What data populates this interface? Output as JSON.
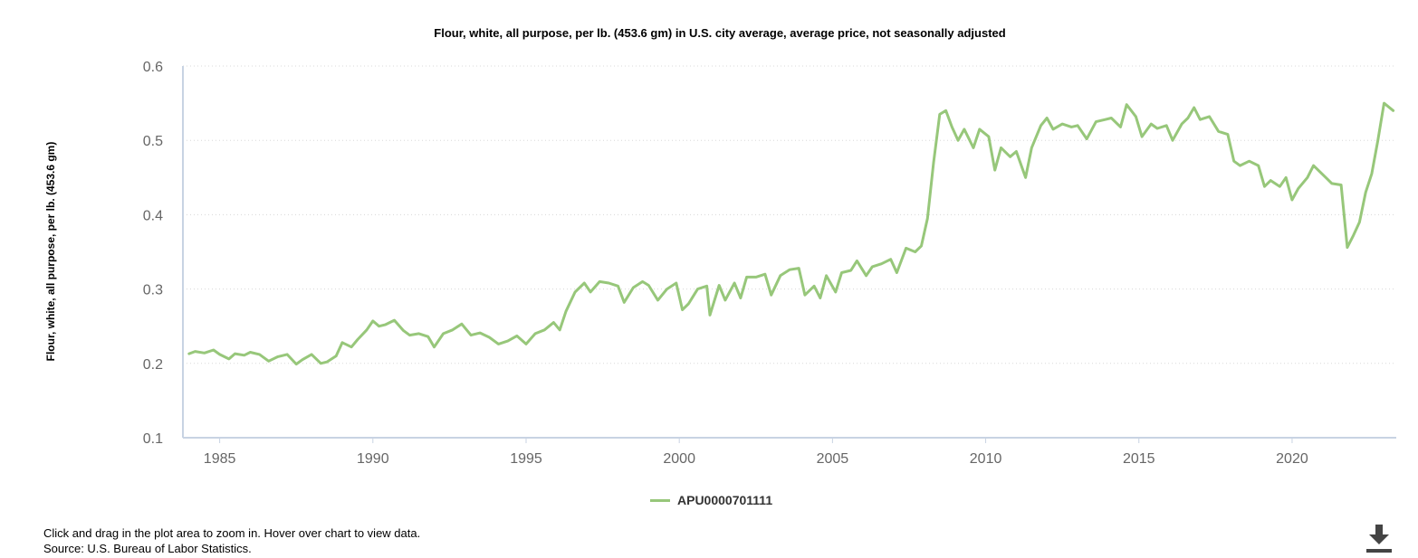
{
  "chart_data": {
    "type": "line",
    "title": "Flour, white, all purpose, per lb. (453.6 gm) in U.S. city average, average price, not seasonally adjusted",
    "xlabel": "",
    "ylabel": "Flour, white, all purpose, per lb. (453.6 gm)",
    "xlim": [
      1983.8,
      2023.4
    ],
    "ylim": [
      0.1,
      0.6
    ],
    "x_ticks": [
      "1985",
      "1990",
      "1995",
      "2000",
      "2005",
      "2010",
      "2015",
      "2020"
    ],
    "y_ticks": [
      "0.1",
      "0.2",
      "0.3",
      "0.4",
      "0.5",
      "0.6"
    ],
    "grid": true,
    "legend_position": "bottom-center",
    "series": [
      {
        "name": "APU0000701111",
        "color": "#97c77a",
        "points": [
          [
            1984.0,
            0.213
          ],
          [
            1984.2,
            0.216
          ],
          [
            1984.5,
            0.214
          ],
          [
            1984.8,
            0.218
          ],
          [
            1985.0,
            0.212
          ],
          [
            1985.3,
            0.206
          ],
          [
            1985.5,
            0.213
          ],
          [
            1985.8,
            0.211
          ],
          [
            1986.0,
            0.215
          ],
          [
            1986.3,
            0.212
          ],
          [
            1986.6,
            0.203
          ],
          [
            1986.9,
            0.209
          ],
          [
            1987.2,
            0.212
          ],
          [
            1987.5,
            0.199
          ],
          [
            1987.7,
            0.205
          ],
          [
            1988.0,
            0.212
          ],
          [
            1988.3,
            0.2
          ],
          [
            1988.5,
            0.202
          ],
          [
            1988.8,
            0.21
          ],
          [
            1989.0,
            0.228
          ],
          [
            1989.3,
            0.222
          ],
          [
            1989.5,
            0.232
          ],
          [
            1989.8,
            0.245
          ],
          [
            1990.0,
            0.257
          ],
          [
            1990.2,
            0.25
          ],
          [
            1990.4,
            0.252
          ],
          [
            1990.7,
            0.258
          ],
          [
            1991.0,
            0.244
          ],
          [
            1991.2,
            0.238
          ],
          [
            1991.5,
            0.24
          ],
          [
            1991.8,
            0.236
          ],
          [
            1992.0,
            0.222
          ],
          [
            1992.3,
            0.24
          ],
          [
            1992.6,
            0.245
          ],
          [
            1992.9,
            0.253
          ],
          [
            1993.2,
            0.238
          ],
          [
            1993.5,
            0.241
          ],
          [
            1993.8,
            0.235
          ],
          [
            1994.1,
            0.226
          ],
          [
            1994.4,
            0.23
          ],
          [
            1994.7,
            0.237
          ],
          [
            1995.0,
            0.226
          ],
          [
            1995.3,
            0.24
          ],
          [
            1995.6,
            0.245
          ],
          [
            1995.9,
            0.255
          ],
          [
            1996.1,
            0.245
          ],
          [
            1996.3,
            0.27
          ],
          [
            1996.6,
            0.296
          ],
          [
            1996.9,
            0.308
          ],
          [
            1997.1,
            0.296
          ],
          [
            1997.4,
            0.31
          ],
          [
            1997.7,
            0.308
          ],
          [
            1998.0,
            0.304
          ],
          [
            1998.2,
            0.282
          ],
          [
            1998.5,
            0.302
          ],
          [
            1998.8,
            0.31
          ],
          [
            1999.0,
            0.305
          ],
          [
            1999.3,
            0.285
          ],
          [
            1999.6,
            0.3
          ],
          [
            1999.9,
            0.308
          ],
          [
            2000.1,
            0.272
          ],
          [
            2000.3,
            0.28
          ],
          [
            2000.6,
            0.3
          ],
          [
            2000.9,
            0.304
          ],
          [
            2001.0,
            0.265
          ],
          [
            2001.3,
            0.305
          ],
          [
            2001.5,
            0.285
          ],
          [
            2001.8,
            0.308
          ],
          [
            2002.0,
            0.288
          ],
          [
            2002.2,
            0.316
          ],
          [
            2002.5,
            0.316
          ],
          [
            2002.8,
            0.32
          ],
          [
            2003.0,
            0.292
          ],
          [
            2003.3,
            0.318
          ],
          [
            2003.6,
            0.326
          ],
          [
            2003.9,
            0.328
          ],
          [
            2004.1,
            0.292
          ],
          [
            2004.4,
            0.304
          ],
          [
            2004.6,
            0.288
          ],
          [
            2004.8,
            0.318
          ],
          [
            2005.1,
            0.296
          ],
          [
            2005.3,
            0.322
          ],
          [
            2005.6,
            0.325
          ],
          [
            2005.8,
            0.338
          ],
          [
            2006.1,
            0.318
          ],
          [
            2006.3,
            0.33
          ],
          [
            2006.6,
            0.334
          ],
          [
            2006.9,
            0.34
          ],
          [
            2007.1,
            0.322
          ],
          [
            2007.4,
            0.355
          ],
          [
            2007.7,
            0.35
          ],
          [
            2007.9,
            0.358
          ],
          [
            2008.1,
            0.395
          ],
          [
            2008.3,
            0.47
          ],
          [
            2008.5,
            0.535
          ],
          [
            2008.7,
            0.54
          ],
          [
            2008.9,
            0.518
          ],
          [
            2009.1,
            0.5
          ],
          [
            2009.3,
            0.515
          ],
          [
            2009.6,
            0.49
          ],
          [
            2009.8,
            0.515
          ],
          [
            2010.1,
            0.505
          ],
          [
            2010.3,
            0.46
          ],
          [
            2010.5,
            0.49
          ],
          [
            2010.8,
            0.478
          ],
          [
            2011.0,
            0.485
          ],
          [
            2011.3,
            0.45
          ],
          [
            2011.5,
            0.49
          ],
          [
            2011.8,
            0.52
          ],
          [
            2012.0,
            0.53
          ],
          [
            2012.2,
            0.515
          ],
          [
            2012.5,
            0.522
          ],
          [
            2012.8,
            0.518
          ],
          [
            2013.0,
            0.52
          ],
          [
            2013.3,
            0.502
          ],
          [
            2013.6,
            0.525
          ],
          [
            2013.9,
            0.528
          ],
          [
            2014.1,
            0.53
          ],
          [
            2014.4,
            0.518
          ],
          [
            2014.6,
            0.548
          ],
          [
            2014.9,
            0.532
          ],
          [
            2015.1,
            0.505
          ],
          [
            2015.4,
            0.522
          ],
          [
            2015.6,
            0.516
          ],
          [
            2015.9,
            0.52
          ],
          [
            2016.1,
            0.5
          ],
          [
            2016.4,
            0.522
          ],
          [
            2016.6,
            0.53
          ],
          [
            2016.8,
            0.544
          ],
          [
            2017.0,
            0.528
          ],
          [
            2017.3,
            0.532
          ],
          [
            2017.6,
            0.512
          ],
          [
            2017.9,
            0.508
          ],
          [
            2018.1,
            0.472
          ],
          [
            2018.3,
            0.466
          ],
          [
            2018.6,
            0.472
          ],
          [
            2018.9,
            0.466
          ],
          [
            2019.1,
            0.438
          ],
          [
            2019.3,
            0.446
          ],
          [
            2019.6,
            0.438
          ],
          [
            2019.8,
            0.45
          ],
          [
            2020.0,
            0.42
          ],
          [
            2020.2,
            0.435
          ],
          [
            2020.5,
            0.45
          ],
          [
            2020.7,
            0.466
          ],
          [
            2020.9,
            0.458
          ],
          [
            2021.1,
            0.45
          ],
          [
            2021.3,
            0.442
          ],
          [
            2021.6,
            0.44
          ],
          [
            2021.8,
            0.356
          ],
          [
            2022.0,
            0.372
          ],
          [
            2022.2,
            0.39
          ],
          [
            2022.4,
            0.43
          ],
          [
            2022.6,
            0.455
          ],
          [
            2022.8,
            0.5
          ],
          [
            2023.0,
            0.55
          ],
          [
            2023.3,
            0.54
          ]
        ]
      }
    ]
  },
  "footer": {
    "line1": "Click and drag in the plot area to zoom in. Hover over chart to view data.",
    "line2": "Source: U.S. Bureau of Labor Statistics."
  },
  "icons": {
    "download": "download-icon"
  }
}
